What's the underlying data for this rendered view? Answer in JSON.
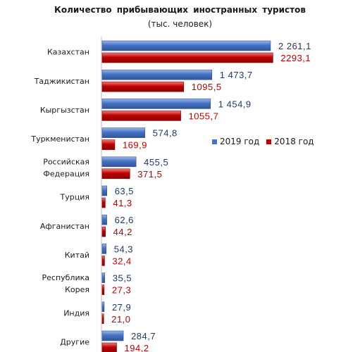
{
  "chart_data": {
    "type": "bar",
    "orientation": "horizontal",
    "title": "Количество прибывающих иностранных туристов",
    "subtitle": "(тыс. человек)",
    "categories": [
      "Казахстан",
      "Таджикистан",
      "Кыргызстан",
      "Туркменистан",
      [
        "Российская",
        "Федерация"
      ],
      "Турция",
      "Афганистан",
      "Китай",
      [
        "Республика",
        "Корея"
      ],
      "Индия",
      "Другие"
    ],
    "series": [
      {
        "name": "2019 год",
        "color": "#4472C4",
        "values": [
          2261.1,
          1473.7,
          1454.9,
          574.8,
          455.5,
          63.5,
          62.6,
          54.3,
          35.5,
          27.9,
          284.7
        ],
        "labels": [
          "2 261,1",
          "1 473,7",
          "1 454,9",
          "574,8",
          "455,5",
          "63,5",
          "62,6",
          "54,3",
          "35,5",
          "27,9",
          "284,7"
        ],
        "label_color": "#1F3864"
      },
      {
        "name": "2018 год",
        "color": "#C00000",
        "values": [
          2293.1,
          1095.5,
          1055.7,
          169.9,
          371.5,
          41.3,
          44.2,
          32.4,
          27.3,
          21.0,
          194.2
        ],
        "labels": [
          "2293,1",
          "1095,5",
          "1055,7",
          "169,9",
          "371,5",
          "41,3",
          "44,2",
          "32,4",
          "27,3",
          "21,0",
          "194,2"
        ],
        "label_color": "#C00000"
      }
    ],
    "xlim": [
      0,
      2500
    ],
    "grid": false,
    "legend_position": "right"
  }
}
